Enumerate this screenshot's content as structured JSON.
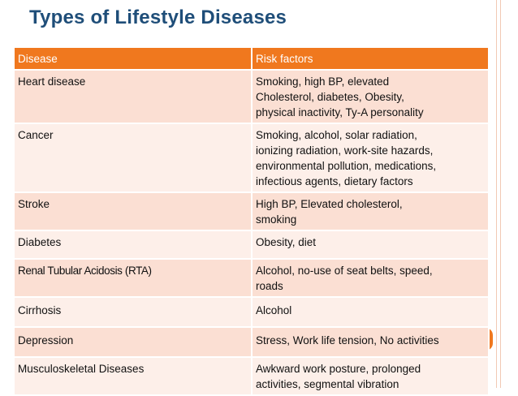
{
  "title": "Types of Lifestyle Diseases",
  "table": {
    "headers": [
      "Disease",
      "Risk factors"
    ],
    "rows": [
      {
        "disease": "Heart disease",
        "risk_lines": [
          "Smoking, high BP, elevated",
          "Cholesterol, diabetes, Obesity,",
          "physical inactivity, Ty-A personality"
        ]
      },
      {
        "disease": "Cancer",
        "risk_lines": [
          "Smoking, alcohol, solar radiation,",
          "ionizing radiation, work-site hazards,",
          "environmental pollution, medications,",
          "infectious agents, dietary factors"
        ]
      },
      {
        "disease": "Stroke",
        "risk_lines": [
          "High BP, Elevated cholesterol,",
          "smoking"
        ]
      },
      {
        "disease": "Diabetes",
        "risk_lines": [
          "Obesity, diet"
        ]
      },
      {
        "disease": "Renal Tubular Acidosis (RTA)",
        "risk_lines": [
          "Alcohol, no-use of seat belts, speed,",
          "roads"
        ]
      },
      {
        "disease": "Cirrhosis",
        "risk_lines": [
          "Alcohol"
        ]
      },
      {
        "disease": "Depression",
        "risk_lines": [
          "Stress, Work life tension, No activities"
        ]
      },
      {
        "disease": "Musculoskeletal Diseases",
        "risk_lines": [
          "Awkward work posture, prolonged",
          "activities, segmental vibration"
        ]
      }
    ]
  },
  "colors": {
    "title": "#1f4e79",
    "header_fill": "#f0781e",
    "row_fill_dark": "#fbdfd3",
    "row_fill_light": "#fdefe9"
  }
}
